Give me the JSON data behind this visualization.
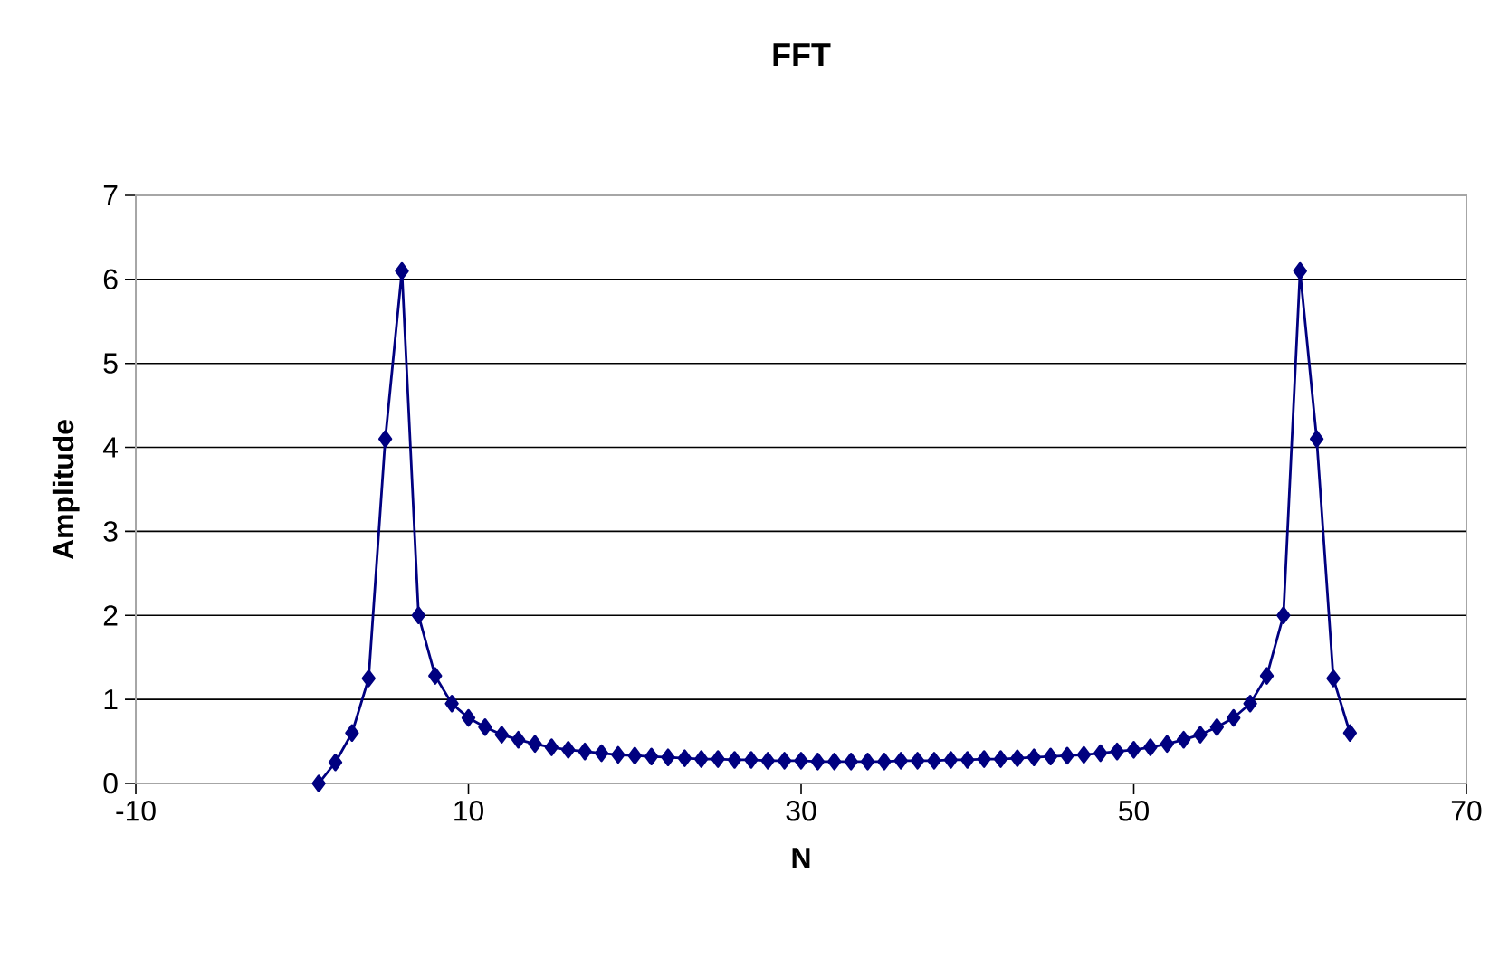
{
  "chart_data": {
    "type": "line",
    "title": "FFT",
    "xlabel": "N",
    "ylabel": "Amplitude",
    "x": [
      1,
      2,
      3,
      4,
      5,
      6,
      7,
      8,
      9,
      10,
      11,
      12,
      13,
      14,
      15,
      16,
      17,
      18,
      19,
      20,
      21,
      22,
      23,
      24,
      25,
      26,
      27,
      28,
      29,
      30,
      31,
      32,
      33,
      34,
      35,
      36,
      37,
      38,
      39,
      40,
      41,
      42,
      43,
      44,
      45,
      46,
      47,
      48,
      49,
      50,
      51,
      52,
      53,
      54,
      55,
      56,
      57,
      58,
      59,
      60,
      61,
      62,
      63
    ],
    "series": [
      {
        "color": "#000080",
        "values": [
          0,
          0.25,
          0.6,
          1.25,
          4.1,
          6.1,
          2.0,
          1.28,
          0.95,
          0.78,
          0.67,
          0.58,
          0.52,
          0.47,
          0.43,
          0.4,
          0.38,
          0.36,
          0.34,
          0.33,
          0.32,
          0.31,
          0.3,
          0.29,
          0.29,
          0.28,
          0.28,
          0.27,
          0.27,
          0.27,
          0.26,
          0.26,
          0.26,
          0.26,
          0.26,
          0.27,
          0.27,
          0.27,
          0.28,
          0.28,
          0.29,
          0.29,
          0.3,
          0.31,
          0.32,
          0.33,
          0.34,
          0.36,
          0.38,
          0.4,
          0.43,
          0.47,
          0.52,
          0.58,
          0.67,
          0.78,
          0.95,
          1.28,
          2.0,
          6.1,
          4.1,
          1.25,
          0.6
        ]
      }
    ],
    "xlim": [
      -10,
      70
    ],
    "xticks": [
      -10,
      10,
      30,
      50,
      70
    ],
    "ylim": [
      0,
      7
    ],
    "yticks": [
      0,
      1,
      2,
      3,
      4,
      5,
      6,
      7
    ],
    "grid": "y",
    "marker": "diamond",
    "line_style": "solid"
  }
}
